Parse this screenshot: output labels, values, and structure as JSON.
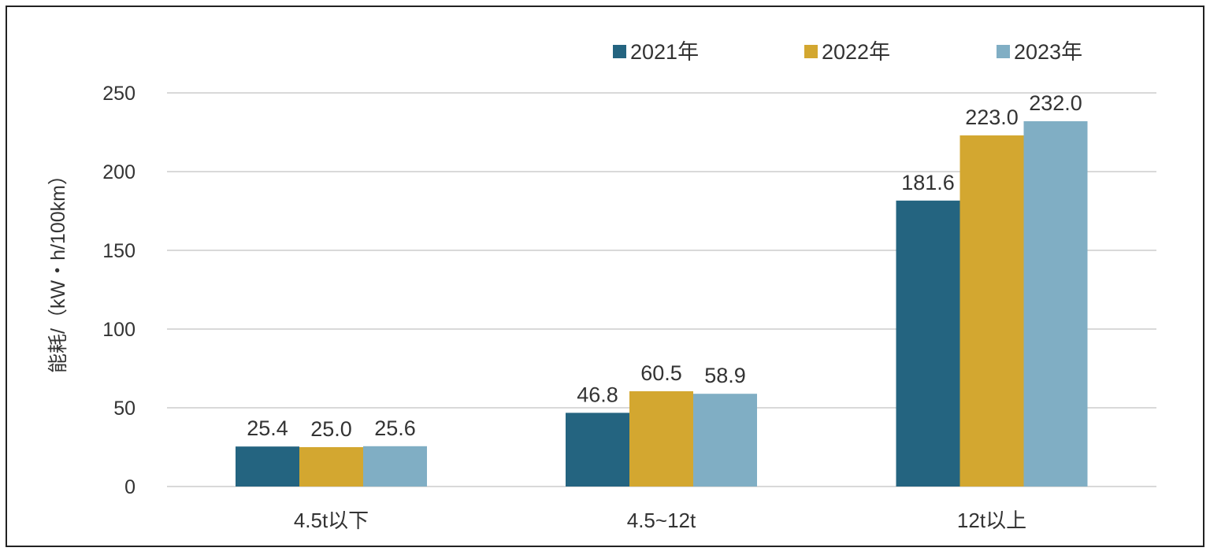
{
  "chart_data": {
    "type": "bar",
    "title": "",
    "xlabel": "",
    "ylabel": "能耗/（kW・h/100km）",
    "categories": [
      "4.5t以下",
      "4.5~12t",
      "12t以上"
    ],
    "series": [
      {
        "name": "2021年",
        "color": "#246480",
        "values": [
          25.4,
          46.8,
          181.6
        ],
        "labels": [
          "25.4",
          "46.8",
          "181.6"
        ]
      },
      {
        "name": "2022年",
        "color": "#d3a730",
        "values": [
          25.0,
          60.5,
          223.0
        ],
        "labels": [
          "25.0",
          "60.5",
          "223.0"
        ]
      },
      {
        "name": "2023年",
        "color": "#80aec4",
        "values": [
          25.6,
          58.9,
          232.0
        ],
        "labels": [
          "25.6",
          "58.9",
          "232.0"
        ]
      }
    ],
    "ylim": [
      0,
      250
    ],
    "yticks": [
      0,
      50,
      100,
      150,
      200,
      250
    ],
    "grid": true,
    "legend_position": "top-right",
    "gridline_color": "#d9d9d9"
  }
}
